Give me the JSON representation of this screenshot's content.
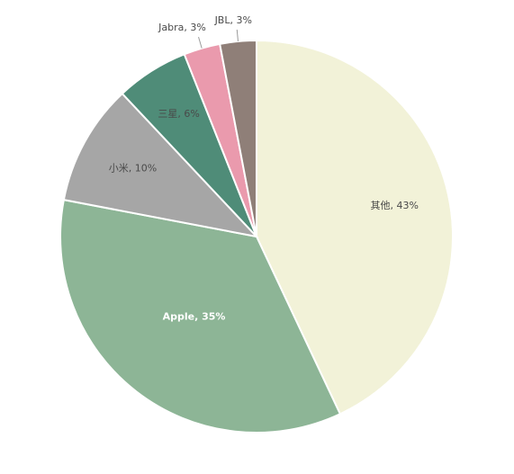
{
  "chart_data": {
    "type": "pie",
    "categories": [
      "其他",
      "Apple",
      "小米",
      "三星",
      "Jabra",
      "JBL"
    ],
    "values": [
      43,
      35,
      10,
      6,
      3,
      3
    ],
    "colors": [
      "#f2f2d8",
      "#8db596",
      "#a6a6a6",
      "#4f8c78",
      "#ea9aad",
      "#8f7f78"
    ],
    "labels": [
      "其他, 43%",
      "Apple, 35%",
      "小米, 10%",
      "三星, 6%",
      "Jabra, 3%",
      "JBL, 3%"
    ],
    "start": "12 o'clock",
    "direction": "clockwise",
    "legend": "none",
    "data_labels": "category, percent"
  }
}
